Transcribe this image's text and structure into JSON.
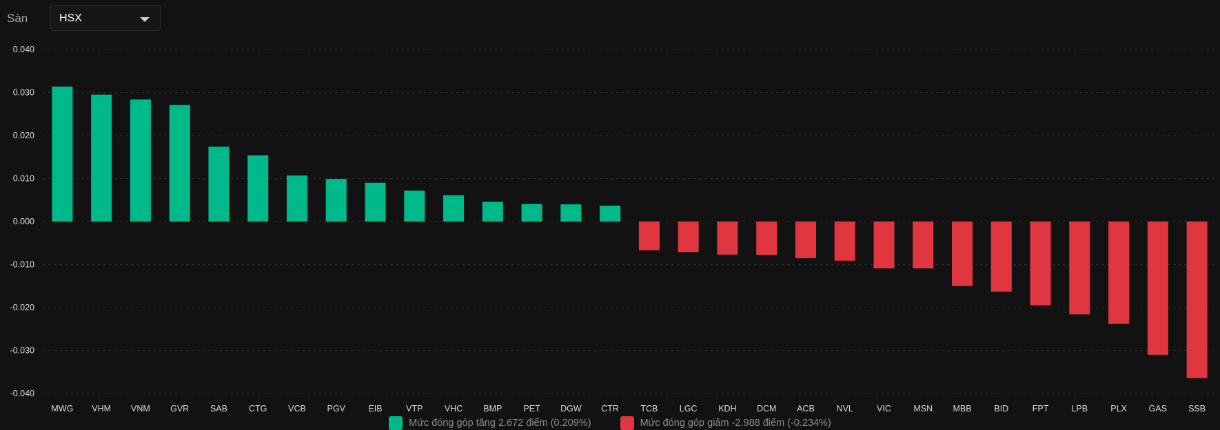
{
  "filter": {
    "label": "Sàn",
    "selected": "HSX"
  },
  "colors": {
    "increase": "#00b98b",
    "decrease": "#e0363f",
    "grid": "#2a2a2a",
    "axis_text": "#d9d9d9"
  },
  "legend": {
    "increase_label": "Mức đóng góp tăng 2.672 điểm (0.209%)",
    "decrease_label": "Mức đóng góp giảm -2.988 điểm (-0.234%)"
  },
  "chart_data": {
    "type": "bar",
    "categories": [
      "MWG",
      "VHM",
      "VNM",
      "GVR",
      "SAB",
      "CTG",
      "VCB",
      "PGV",
      "EIB",
      "VTP",
      "VHC",
      "BMP",
      "PET",
      "DGW",
      "CTR",
      "TCB",
      "LGC",
      "KDH",
      "DCM",
      "ACB",
      "NVL",
      "VIC",
      "MSN",
      "MBB",
      "BID",
      "FPT",
      "LPB",
      "PLX",
      "GAS",
      "SSB"
    ],
    "values": [
      0.0314,
      0.0295,
      0.0284,
      0.0271,
      0.0174,
      0.0154,
      0.0107,
      0.0099,
      0.009,
      0.0072,
      0.0061,
      0.0046,
      0.0041,
      0.004,
      0.0037,
      -0.0067,
      -0.0071,
      -0.0077,
      -0.0078,
      -0.0085,
      -0.0091,
      -0.0109,
      -0.0109,
      -0.015,
      -0.0163,
      -0.0195,
      -0.0216,
      -0.0238,
      -0.031,
      -0.0364
    ],
    "yticks": [
      "0.040",
      "0.030",
      "0.020",
      "0.010",
      "0.000",
      "-0.010",
      "-0.020",
      "-0.030",
      "-0.040"
    ],
    "ylim": [
      -0.04,
      0.04
    ],
    "grid": true,
    "legend_position": "bottom"
  }
}
